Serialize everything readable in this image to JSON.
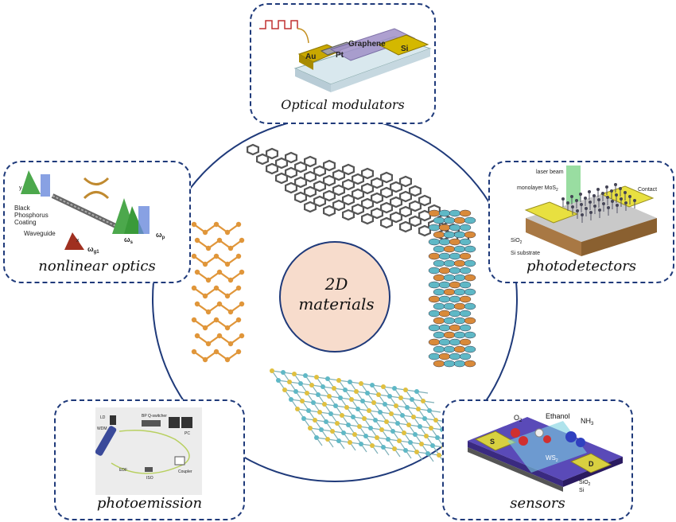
{
  "center": {
    "line1": "2D",
    "line2": "materials"
  },
  "applications": {
    "optical_modulators": {
      "title": "Optical modulators",
      "labels": {
        "au": "Au",
        "pt": "Pt",
        "graphene": "Graphene",
        "si": "Si"
      }
    },
    "nonlinear_optics": {
      "title": "nonlinear optics",
      "labels": {
        "bp1": "Black",
        "bp2": "Phosphorus",
        "bp3": "Coating",
        "waveguide": "Waveguide",
        "wg1": "ω",
        "wg1_sub": "g1",
        "ws": "ω",
        "ws_sub": "s",
        "wp": "ω",
        "wp_sub": "p",
        "axis_y": "y",
        "axis_x": "x"
      }
    },
    "photodetectors": {
      "title": "photodetectors",
      "labels": {
        "laser": "laser beam",
        "mos2": "monolayer MoS",
        "mos2_sub": "2",
        "contact": "Contact",
        "sio2": "SiO",
        "sio2_sub": "2",
        "si_sub": "Si substrate"
      }
    },
    "photoemission": {
      "title": "photoemission",
      "labels": {
        "ld": "LD",
        "wdm": "WDM",
        "bp": "BP Q-switcher",
        "pc": "PC",
        "edf": "EDF",
        "iso": "ISO",
        "coupler": "Coupler"
      }
    },
    "sensors": {
      "title": "sensors",
      "labels": {
        "o2": "O",
        "o2_sub": "2",
        "ethanol": "Ethanol",
        "nh3": "NH",
        "nh3_sub": "3",
        "s": "S",
        "d": "D",
        "ws2": "WS",
        "ws2_sub": "2",
        "sio2": "SiO",
        "sio2_sub": "2",
        "si": "Si"
      }
    }
  },
  "colors": {
    "circle": "#1f3a7a",
    "center_fill": "#f7dccc",
    "graphene": "#555555",
    "phosphorene": "#e0963a",
    "tmd_cyan": "#5fb8c6",
    "tmd_orange": "#d98a3a",
    "tmd_yellow": "#e0c040"
  }
}
